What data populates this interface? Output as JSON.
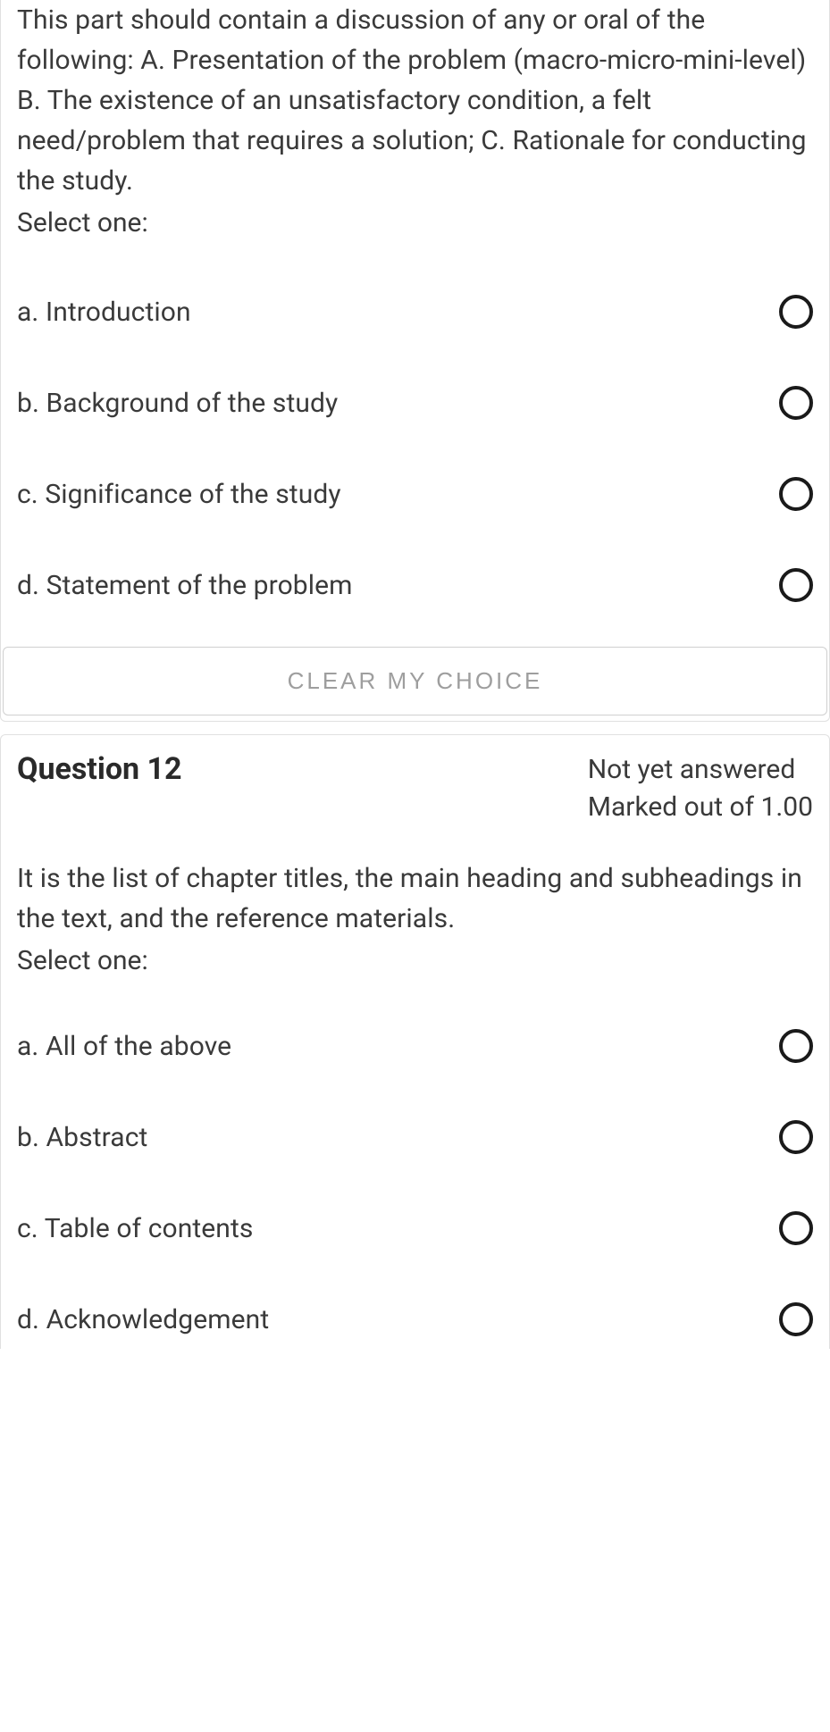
{
  "q11": {
    "text": "This part should contain a discussion of any or oral of the following: A. Presentation of the problem (macro-micro-mini-level) B. The existence of an unsatisfactory condition, a felt need/problem that requires a solution; C. Rationale for conducting the study.",
    "select_one": "Select one:",
    "options": [
      {
        "label": "a. Introduction"
      },
      {
        "label": "b. Background of the study"
      },
      {
        "label": "c. Significance of the study"
      },
      {
        "label": "d. Statement of the problem"
      }
    ],
    "clear_label": "CLEAR MY CHOICE"
  },
  "q12": {
    "title": "Question 12",
    "status": "Not yet answered",
    "marks": "Marked out of 1.00",
    "text": "It is the list of chapter titles, the main heading and subheadings in the text, and the reference materials.",
    "select_one": "Select one:",
    "options": [
      {
        "label": "a. All of the above"
      },
      {
        "label": "b. Abstract"
      },
      {
        "label": "c. Table of contents"
      },
      {
        "label": "d. Acknowledgement"
      }
    ]
  }
}
